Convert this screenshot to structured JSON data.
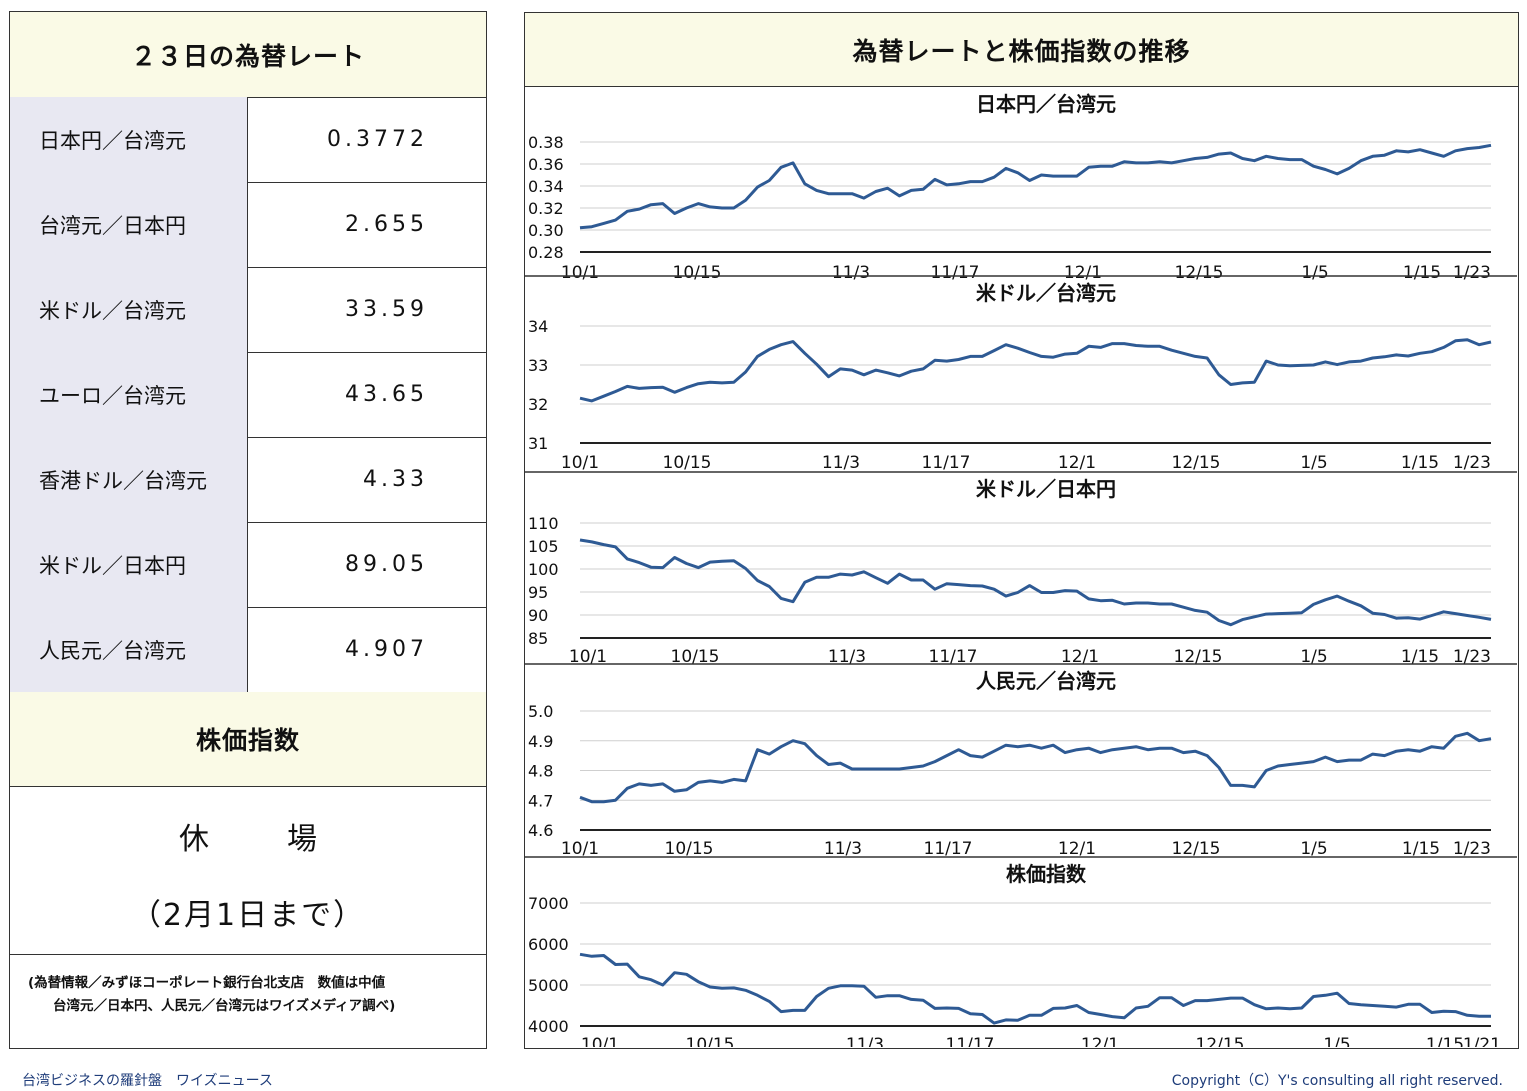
{
  "left": {
    "rates_title": "２３日の為替レート",
    "rates": [
      {
        "label": "日本円／台湾元",
        "value": "0.3772"
      },
      {
        "label": "台湾元／日本円",
        "value": "2.655"
      },
      {
        "label": "米ドル／台湾元",
        "value": "33.59"
      },
      {
        "label": "ユーロ／台湾元",
        "value": "43.65"
      },
      {
        "label": "香港ドル／台湾元",
        "value": "4.33"
      },
      {
        "label": "米ドル／日本円",
        "value": "89.05"
      },
      {
        "label": "人民元／台湾元",
        "value": "4.907"
      }
    ],
    "stock_title": "株価指数",
    "stock_status": "休　場",
    "stock_note": "（2月1日まで）",
    "note_line1": "(為替情報／みずほコーポレート銀行台北支店　数値は中値",
    "note_line2": "台湾元／日本円、人民元／台湾元はワイズメディア調べ)"
  },
  "right": {
    "title": "為替レートと株価指数の推移"
  },
  "footer": {
    "left": "台湾ビジネスの羅針盤　ワイズニュース",
    "right": "Copyright（C）Y's consulting all right reserved."
  },
  "colors": {
    "line": "#2e5a94",
    "header_bg": "#fafae6",
    "label_bg": "#e8e8f2"
  },
  "chart_data": [
    {
      "type": "line",
      "title": "日本円／台湾元",
      "ylim": [
        0.28,
        0.38
      ],
      "yticks": [
        "0.38",
        "0.36",
        "0.34",
        "0.32",
        "0.30",
        "0.28"
      ],
      "xticks": [
        "10/1",
        "10/15",
        "11/3",
        "11/17",
        "12/1",
        "12/15",
        "1/5",
        "1/15",
        "1/23"
      ],
      "values": [
        0.302,
        0.303,
        0.306,
        0.309,
        0.317,
        0.319,
        0.323,
        0.324,
        0.315,
        0.32,
        0.324,
        0.321,
        0.32,
        0.32,
        0.327,
        0.339,
        0.345,
        0.357,
        0.361,
        0.342,
        0.336,
        0.333,
        0.333,
        0.333,
        0.329,
        0.335,
        0.338,
        0.331,
        0.336,
        0.337,
        0.346,
        0.341,
        0.342,
        0.344,
        0.344,
        0.348,
        0.356,
        0.352,
        0.345,
        0.35,
        0.349,
        0.349,
        0.349,
        0.357,
        0.358,
        0.358,
        0.362,
        0.361,
        0.361,
        0.362,
        0.361,
        0.363,
        0.365,
        0.366,
        0.369,
        0.37,
        0.365,
        0.363,
        0.367,
        0.365,
        0.364,
        0.364,
        0.358,
        0.355,
        0.351,
        0.356,
        0.363,
        0.367,
        0.368,
        0.372,
        0.371,
        0.373,
        0.37,
        0.367,
        0.372,
        0.374,
        0.375,
        0.377
      ]
    },
    {
      "type": "line",
      "title": "米ドル／台湾元",
      "ylim": [
        31,
        34
      ],
      "yticks": [
        "34",
        "33",
        "32",
        "31"
      ],
      "xticks": [
        "10/1",
        "10/15",
        "11/3",
        "11/17",
        "12/1",
        "12/15",
        "1/5",
        "1/15",
        "1/23"
      ],
      "values": [
        32.15,
        32.08,
        32.2,
        32.32,
        32.45,
        32.4,
        32.42,
        32.43,
        32.3,
        32.42,
        32.52,
        32.56,
        32.54,
        32.56,
        32.82,
        33.22,
        33.4,
        33.52,
        33.6,
        33.3,
        33.02,
        32.7,
        32.9,
        32.87,
        32.75,
        32.87,
        32.8,
        32.72,
        32.84,
        32.9,
        33.12,
        33.1,
        33.14,
        33.22,
        33.22,
        33.37,
        33.52,
        33.43,
        33.32,
        33.22,
        33.2,
        33.28,
        33.3,
        33.48,
        33.45,
        33.55,
        33.55,
        33.5,
        33.48,
        33.48,
        33.38,
        33.3,
        33.22,
        33.18,
        32.75,
        32.5,
        32.54,
        32.56,
        33.1,
        33.0,
        32.98,
        32.99,
        33.0,
        33.08,
        33.01,
        33.08,
        33.1,
        33.18,
        33.21,
        33.26,
        33.23,
        33.3,
        33.34,
        33.45,
        33.62,
        33.65,
        33.52,
        33.59
      ]
    },
    {
      "type": "line",
      "title": "米ドル／日本円",
      "ylim": [
        85,
        110
      ],
      "yticks": [
        "110",
        "105",
        "100",
        "95",
        "90",
        "85"
      ],
      "xticks": [
        "10/1",
        "10/15",
        "11/3",
        "11/17",
        "12/1",
        "12/15",
        "1/5",
        "1/15",
        "1/23"
      ],
      "values": [
        106.3,
        105.9,
        105.3,
        104.8,
        102.2,
        101.4,
        100.4,
        100.3,
        102.5,
        101.2,
        100.3,
        101.5,
        101.7,
        101.8,
        100.1,
        97.5,
        96.2,
        93.6,
        92.9,
        97.1,
        98.2,
        98.2,
        98.9,
        98.7,
        99.4,
        98.1,
        96.9,
        98.9,
        97.6,
        97.6,
        95.6,
        96.8,
        96.6,
        96.4,
        96.3,
        95.6,
        94.1,
        94.9,
        96.4,
        94.9,
        94.9,
        95.3,
        95.2,
        93.5,
        93.1,
        93.2,
        92.4,
        92.6,
        92.6,
        92.4,
        92.4,
        91.7,
        91.0,
        90.6,
        88.8,
        87.9,
        89.0,
        89.6,
        90.2,
        90.3,
        90.4,
        90.5,
        92.3,
        93.3,
        94.1,
        93.0,
        92.0,
        90.4,
        90.1,
        89.3,
        89.4,
        89.1,
        89.9,
        90.7,
        90.3,
        89.9,
        89.5,
        89.05
      ]
    },
    {
      "type": "line",
      "title": "人民元／台湾元",
      "ylim": [
        4.6,
        5.0
      ],
      "yticks": [
        "5.0",
        "4.9",
        "4.8",
        "4.7",
        "4.6"
      ],
      "xticks": [
        "10/1",
        "10/15",
        "11/3",
        "11/17",
        "12/1",
        "12/15",
        "1/5",
        "1/15",
        "1/23"
      ],
      "values": [
        4.71,
        4.695,
        4.695,
        4.7,
        4.74,
        4.755,
        4.75,
        4.755,
        4.73,
        4.735,
        4.76,
        4.765,
        4.76,
        4.77,
        4.765,
        4.87,
        4.855,
        4.88,
        4.9,
        4.89,
        4.85,
        4.82,
        4.825,
        4.805,
        4.805,
        4.805,
        4.805,
        4.805,
        4.81,
        4.815,
        4.83,
        4.85,
        4.87,
        4.85,
        4.845,
        4.865,
        4.885,
        4.88,
        4.885,
        4.875,
        4.885,
        4.86,
        4.87,
        4.875,
        4.86,
        4.87,
        4.875,
        4.88,
        4.87,
        4.875,
        4.875,
        4.86,
        4.865,
        4.85,
        4.81,
        4.75,
        4.75,
        4.745,
        4.8,
        4.815,
        4.82,
        4.825,
        4.83,
        4.845,
        4.83,
        4.835,
        4.835,
        4.855,
        4.85,
        4.865,
        4.87,
        4.865,
        4.88,
        4.875,
        4.915,
        4.925,
        4.9,
        4.907
      ]
    },
    {
      "type": "line",
      "title": "株価指数",
      "ylim": [
        4000,
        7000
      ],
      "yticks": [
        "7000",
        "6000",
        "5000",
        "4000"
      ],
      "xticks": [
        "10/1",
        "10/15",
        "11/3",
        "11/17",
        "12/1",
        "12/15",
        "1/5",
        "1/15",
        "1/21"
      ],
      "values": [
        5750,
        5700,
        5720,
        5500,
        5510,
        5200,
        5130,
        5000,
        5300,
        5260,
        5080,
        4950,
        4920,
        4930,
        4870,
        4750,
        4600,
        4350,
        4380,
        4380,
        4720,
        4920,
        4980,
        4980,
        4970,
        4700,
        4740,
        4740,
        4650,
        4630,
        4430,
        4440,
        4430,
        4300,
        4280,
        4070,
        4150,
        4140,
        4260,
        4260,
        4430,
        4440,
        4500,
        4330,
        4280,
        4230,
        4200,
        4440,
        4480,
        4690,
        4690,
        4500,
        4620,
        4620,
        4650,
        4680,
        4680,
        4520,
        4420,
        4440,
        4420,
        4440,
        4720,
        4750,
        4800,
        4550,
        4520,
        4500,
        4480,
        4460,
        4530,
        4530,
        4330,
        4360,
        4350,
        4260,
        4240,
        4240
      ]
    }
  ]
}
